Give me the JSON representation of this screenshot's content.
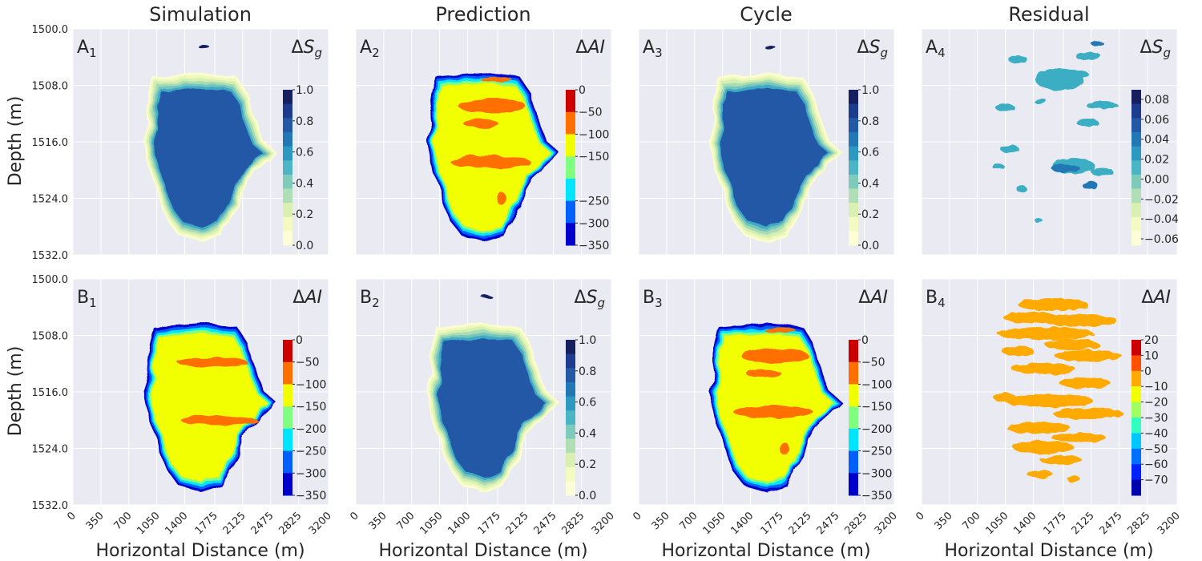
{
  "figure": {
    "column_titles": [
      "Simulation",
      "Prediction",
      "Cycle",
      "Residual"
    ],
    "ylabel": "Depth (m)",
    "xlabel": "Horizontal Distance (m)",
    "background_color": "#eaeaf2",
    "grid_color": "#ffffff"
  },
  "chart_data": {
    "type": "heatmap",
    "x_ticks": [
      0,
      350,
      700,
      1050,
      1400,
      1775,
      2125,
      2475,
      2825,
      3200
    ],
    "x_range": [
      0,
      3200
    ],
    "y_ticks": [
      "1500.0",
      "1508.0",
      "1516.0",
      "1524.0",
      "1532.0"
    ],
    "y_range": [
      1500,
      1532
    ],
    "y_inverted": true,
    "grid": true,
    "colorbar_placement": "inside-right",
    "panels": [
      {
        "id": "A1",
        "letter": "A",
        "index": "1",
        "row": 0,
        "col": 0,
        "title": "Simulation",
        "quantity_symbol": "ΔS",
        "quantity_sub": "g",
        "colormap": "YlGnBu",
        "colorbar_ticks": [
          "1.0",
          "0.8",
          "0.6",
          "0.4",
          "0.2",
          "0.0"
        ],
        "shape": "plume_sg",
        "body_color": "#2058a6"
      },
      {
        "id": "A2",
        "letter": "A",
        "index": "2",
        "row": 0,
        "col": 1,
        "title": "Prediction",
        "quantity_symbol": "ΔAI",
        "quantity_sub": "",
        "colormap": "jet",
        "colorbar_ticks": [
          "0",
          "−50",
          "−100",
          "−150",
          "−250",
          "−300",
          "−350"
        ],
        "colorbar_tick_note": "as printed (−200 label omitted)",
        "shape": "plume_ai",
        "body_color": "#f2ff00"
      },
      {
        "id": "A3",
        "letter": "A",
        "index": "3",
        "row": 0,
        "col": 2,
        "title": "Cycle",
        "quantity_symbol": "ΔS",
        "quantity_sub": "g",
        "colormap": "YlGnBu",
        "colorbar_ticks": [
          "1.0",
          "0.8",
          "0.6",
          "0.4",
          "0.2",
          "0.0"
        ],
        "shape": "plume_sg",
        "body_color": "#2058a6"
      },
      {
        "id": "A4",
        "letter": "A",
        "index": "4",
        "row": 0,
        "col": 3,
        "title": "Residual",
        "quantity_symbol": "ΔS",
        "quantity_sub": "g",
        "colormap": "YlGnBu",
        "colorbar_ticks": [
          "0.08",
          "0.06",
          "0.04",
          "0.02",
          "0.00",
          "−0.02",
          "−0.04",
          "−0.06"
        ],
        "shape": "residual_sg",
        "body_color": "#3aaec4"
      },
      {
        "id": "B1",
        "letter": "B",
        "index": "1",
        "row": 1,
        "col": 0,
        "title": "Simulation",
        "quantity_symbol": "ΔAI",
        "quantity_sub": "",
        "colormap": "jet",
        "colorbar_ticks": [
          "0",
          "−50",
          "−100",
          "−150",
          "−200",
          "−250",
          "−300",
          "−350"
        ],
        "shape": "plume_ai",
        "body_color": "#f2ff00"
      },
      {
        "id": "B2",
        "letter": "B",
        "index": "2",
        "row": 1,
        "col": 1,
        "title": "Prediction",
        "quantity_symbol": "ΔS",
        "quantity_sub": "g",
        "colormap": "YlGnBu",
        "colorbar_ticks": [
          "1.0",
          "0.8",
          "0.6",
          "0.4",
          "0.2",
          "0.0"
        ],
        "shape": "plume_sg",
        "body_color": "#2058a6"
      },
      {
        "id": "B3",
        "letter": "B",
        "index": "3",
        "row": 1,
        "col": 2,
        "title": "Cycle",
        "quantity_symbol": "ΔAI",
        "quantity_sub": "",
        "colormap": "jet",
        "colorbar_ticks": [
          "0",
          "−50",
          "−100",
          "−150",
          "−200",
          "−250",
          "−300",
          "−350"
        ],
        "shape": "plume_ai",
        "body_color": "#f2ff00"
      },
      {
        "id": "B4",
        "letter": "B",
        "index": "4",
        "row": 1,
        "col": 3,
        "title": "Residual",
        "quantity_symbol": "ΔAI",
        "quantity_sub": "",
        "colormap": "jet",
        "colorbar_ticks": [
          "20",
          "10",
          "0",
          "−10",
          "−20",
          "−30",
          "−40",
          "−50",
          "−60",
          "−70"
        ],
        "shape": "residual_ai",
        "body_color": "#ffaa00"
      }
    ],
    "colormaps": {
      "YlGnBu": [
        "#162060",
        "#1d3c8e",
        "#2258a6",
        "#2178b4",
        "#2d99c0",
        "#4cb4c4",
        "#7fcbbb",
        "#b0dfb5",
        "#d9f0b2",
        "#f3fbc3",
        "#fdfed8"
      ],
      "jet": [
        "#cc0000",
        "#ff7000",
        "#f2ff00",
        "#80ff80",
        "#00e5ff",
        "#0060ff",
        "#0000cc"
      ],
      "jet_residual": [
        "#cc0000",
        "#ff5000",
        "#ffaa00",
        "#f2ff00",
        "#a0ff60",
        "#30ffc0",
        "#00c8ff",
        "#0070ff",
        "#0020ff",
        "#0000b0"
      ]
    }
  }
}
